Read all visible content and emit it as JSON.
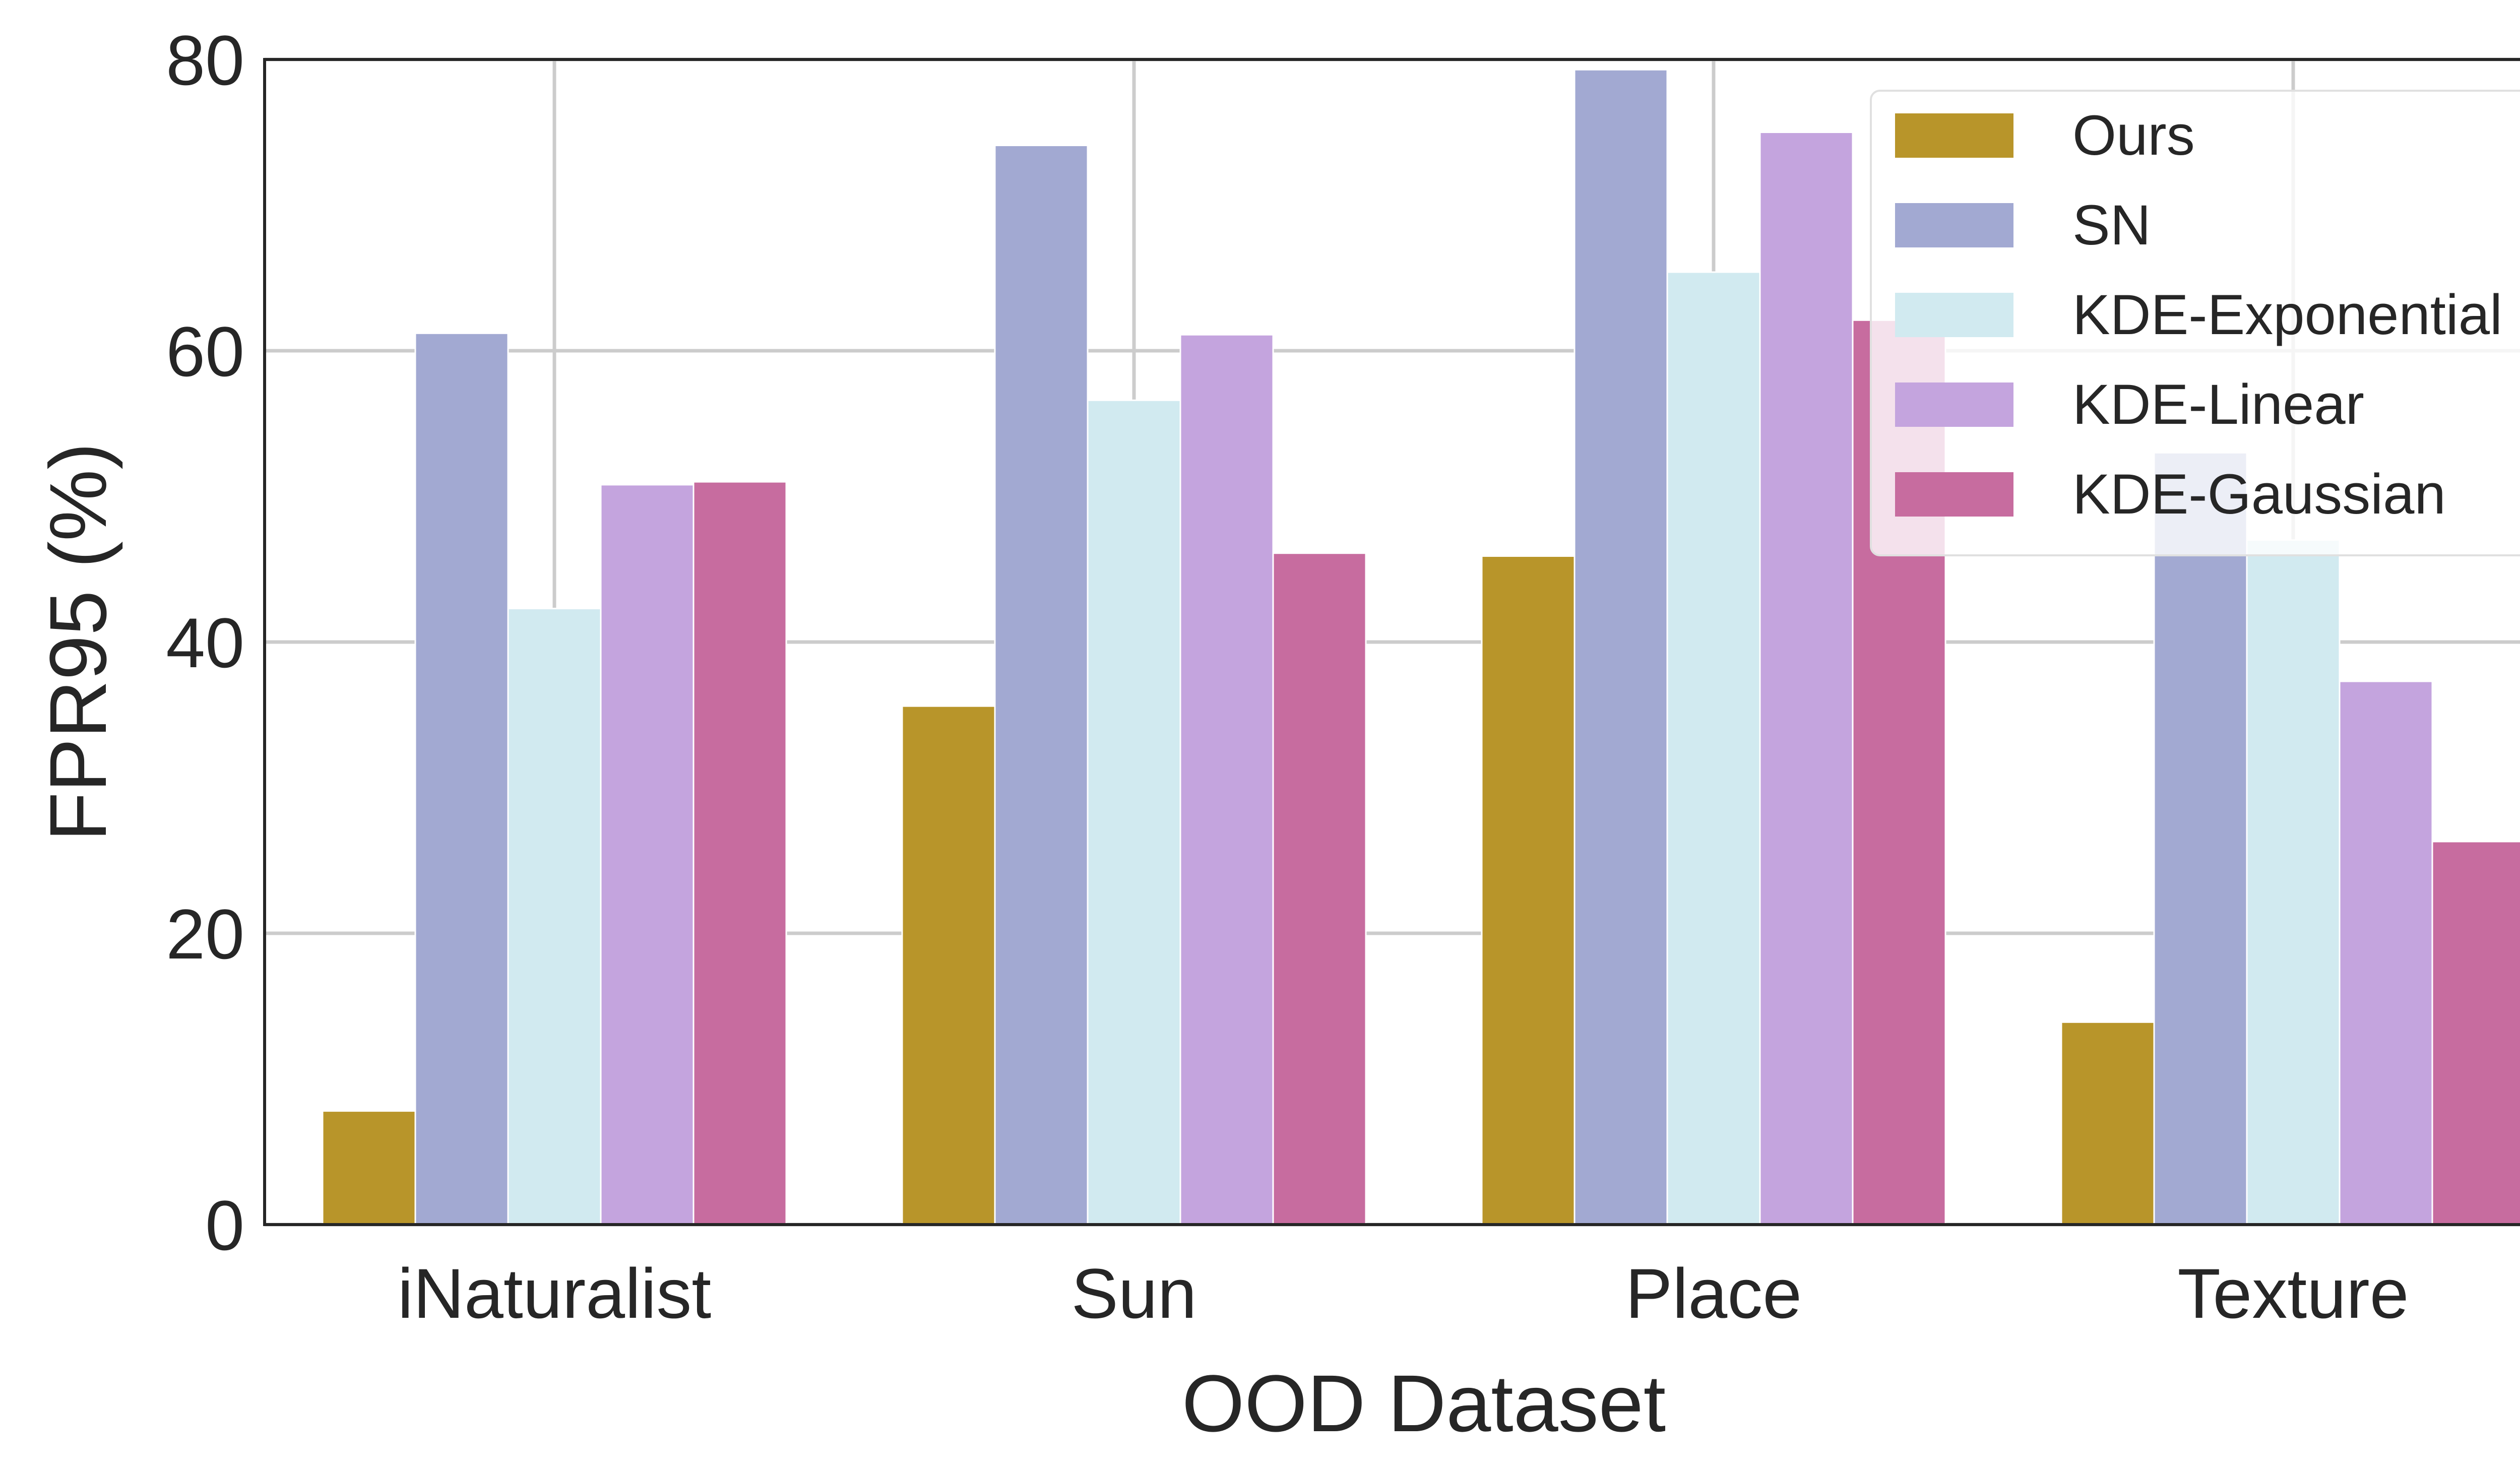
{
  "chart_data": {
    "type": "bar",
    "title": "",
    "xlabel": "OOD Dataset",
    "ylabel": "FPR95 (%)",
    "categories": [
      "iNaturalist",
      "Sun",
      "Place",
      "Texture"
    ],
    "ylim": [
      0,
      80
    ],
    "yticks": [
      0,
      20,
      40,
      60,
      80
    ],
    "grid": true,
    "legend_position": "top-right",
    "series": [
      {
        "name": "Ours",
        "color": "#b8952a",
        "values": [
          7.8,
          35.6,
          45.9,
          13.9
        ]
      },
      {
        "name": "SN",
        "color": "#a2a9d2",
        "values": [
          61.2,
          74.1,
          79.3,
          53.0
        ]
      },
      {
        "name": "KDE-Exponential",
        "color": "#d1eaf0",
        "values": [
          42.3,
          56.6,
          65.4,
          47.0
        ]
      },
      {
        "name": "KDE-Linear",
        "color": "#c4a4de",
        "values": [
          50.8,
          61.1,
          75.0,
          37.3
        ]
      },
      {
        "name": "KDE-Gaussian",
        "color": "#c76c9f",
        "values": [
          51.0,
          46.1,
          62.1,
          26.3
        ]
      }
    ]
  }
}
